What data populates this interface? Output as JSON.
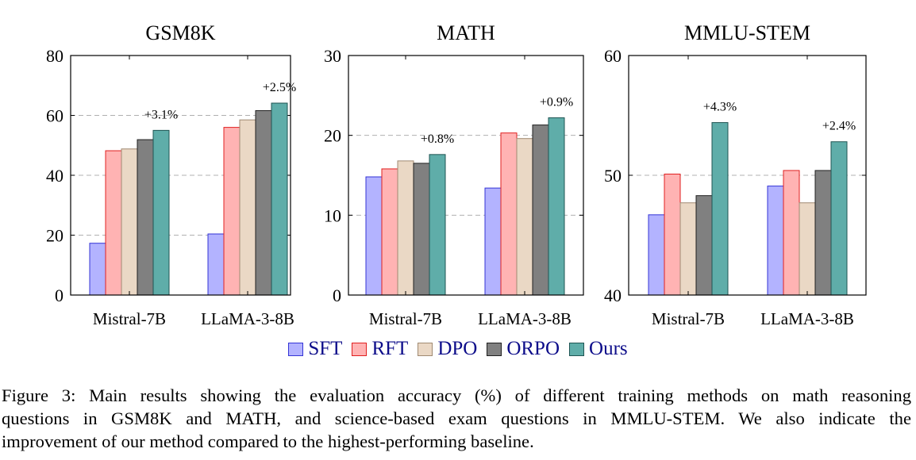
{
  "chart_data": [
    {
      "type": "bar",
      "title": "GSM8K",
      "categories": [
        "Mistral-7B",
        "LLaMA-3-8B"
      ],
      "ylim": [
        0,
        80
      ],
      "yticks": [
        0,
        20,
        40,
        60,
        80
      ],
      "grid": "dashed horizontal",
      "series": [
        {
          "name": "SFT",
          "values": [
            17.3,
            20.4
          ]
        },
        {
          "name": "RFT",
          "values": [
            48.2,
            56.0
          ]
        },
        {
          "name": "DPO",
          "values": [
            48.8,
            58.5
          ]
        },
        {
          "name": "ORPO",
          "values": [
            51.9,
            61.6
          ]
        },
        {
          "name": "Ours",
          "values": [
            55.0,
            64.1
          ]
        }
      ],
      "annotations": [
        "+3.1%",
        "+2.5%"
      ]
    },
    {
      "type": "bar",
      "title": "MATH",
      "categories": [
        "Mistral-7B",
        "LLaMA-3-8B"
      ],
      "ylim": [
        0,
        30
      ],
      "yticks": [
        0,
        10,
        20,
        30
      ],
      "grid": "dashed horizontal",
      "series": [
        {
          "name": "SFT",
          "values": [
            14.8,
            13.4
          ]
        },
        {
          "name": "RFT",
          "values": [
            15.8,
            20.3
          ]
        },
        {
          "name": "DPO",
          "values": [
            16.8,
            19.6
          ]
        },
        {
          "name": "ORPO",
          "values": [
            16.5,
            21.3
          ]
        },
        {
          "name": "Ours",
          "values": [
            17.6,
            22.2
          ]
        }
      ],
      "annotations": [
        "+0.8%",
        "+0.9%"
      ]
    },
    {
      "type": "bar",
      "title": "MMLU-STEM",
      "categories": [
        "Mistral-7B",
        "LLaMA-3-8B"
      ],
      "ylim": [
        40,
        60
      ],
      "yticks": [
        40,
        50,
        60
      ],
      "grid": "dashed horizontal",
      "series": [
        {
          "name": "SFT",
          "values": [
            46.7,
            49.1
          ]
        },
        {
          "name": "RFT",
          "values": [
            50.1,
            50.4
          ]
        },
        {
          "name": "DPO",
          "values": [
            47.7,
            47.7
          ]
        },
        {
          "name": "ORPO",
          "values": [
            48.3,
            50.4
          ]
        },
        {
          "name": "Ours",
          "values": [
            54.4,
            52.8
          ]
        }
      ],
      "annotations": [
        "+4.3%",
        "+2.4%"
      ]
    }
  ],
  "legend": {
    "placement": "bottom-center",
    "items": [
      "SFT",
      "RFT",
      "DPO",
      "ORPO",
      "Ours"
    ]
  },
  "colors": {
    "SFT": {
      "fill": "#b3b3ff",
      "stroke": "#3434d6"
    },
    "RFT": {
      "fill": "#ffb3b3",
      "stroke": "#e02020"
    },
    "DPO": {
      "fill": "#ead8c5",
      "stroke": "#a08a72"
    },
    "ORPO": {
      "fill": "#808080",
      "stroke": "#202020"
    },
    "Ours": {
      "fill": "#5fada9",
      "stroke": "#1f5553"
    }
  },
  "caption": {
    "lines": [
      "Figure 3: Main results showing the evaluation accuracy (%) of different training methods on math reasoning",
      "questions in GSM8K and MATH, and science-based exam questions in MMLU-STEM. We also indicate the",
      "improvement of our method compared to the highest-performing baseline."
    ]
  }
}
